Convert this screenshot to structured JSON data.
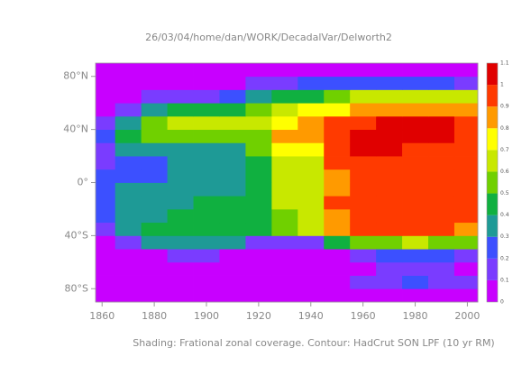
{
  "chart_data": {
    "type": "heatmap",
    "title": "26/03/04/home/dan/WORK/DecadalVar/Delworth2",
    "caption": "Shading: Frational zonal coverage. Contour: HadCrut SON LPF (10 yr RM)",
    "xlim": [
      1857.5,
      2004
    ],
    "ylim": [
      -90,
      90
    ],
    "xticks": [
      1860,
      1880,
      1900,
      1920,
      1940,
      1960,
      1980,
      2000
    ],
    "yticks": [
      {
        "value": -80,
        "label": "80°S"
      },
      {
        "value": -40,
        "label": "40°S"
      },
      {
        "value": 0,
        "label": "0°"
      },
      {
        "value": 40,
        "label": "40°N"
      },
      {
        "value": 80,
        "label": "80°N"
      }
    ],
    "x_bins": [
      1857.5,
      1865,
      1875,
      1885,
      1895,
      1905,
      1915,
      1925,
      1935,
      1945,
      1955,
      1965,
      1975,
      1985,
      1995,
      2004
    ],
    "y_bins": [
      -90,
      -80,
      -70,
      -60,
      -50,
      -40,
      -30,
      -20,
      -10,
      0,
      10,
      20,
      30,
      40,
      50,
      60,
      70,
      80,
      90
    ],
    "values": [
      [
        0,
        0,
        0,
        0,
        0,
        0,
        0,
        0,
        0,
        0,
        0,
        0,
        0,
        0,
        0
      ],
      [
        0,
        0,
        0,
        0,
        0,
        0,
        0,
        0,
        0,
        0,
        0.1,
        0.15,
        0.2,
        0.15,
        0.1
      ],
      [
        0,
        0,
        0,
        0,
        0,
        0,
        0,
        0,
        0,
        0,
        0.05,
        0.1,
        0.15,
        0.1,
        0.05
      ],
      [
        0,
        0,
        0.05,
        0.1,
        0.1,
        0.05,
        0,
        0,
        0,
        0,
        0.1,
        0.2,
        0.25,
        0.2,
        0.1
      ],
      [
        0,
        0.1,
        0.3,
        0.35,
        0.35,
        0.3,
        0.1,
        0.15,
        0.15,
        0.4,
        0.5,
        0.55,
        0.6,
        0.55,
        0.5
      ],
      [
        0.15,
        0.3,
        0.4,
        0.45,
        0.45,
        0.45,
        0.45,
        0.5,
        0.6,
        0.85,
        0.9,
        0.9,
        0.9,
        0.9,
        0.85
      ],
      [
        0.2,
        0.3,
        0.35,
        0.4,
        0.4,
        0.4,
        0.45,
        0.55,
        0.65,
        0.85,
        0.9,
        0.9,
        0.9,
        0.9,
        0.9
      ],
      [
        0.25,
        0.3,
        0.35,
        0.35,
        0.4,
        0.4,
        0.45,
        0.6,
        0.65,
        0.9,
        0.9,
        0.9,
        0.95,
        0.9,
        0.9
      ],
      [
        0.2,
        0.3,
        0.3,
        0.35,
        0.35,
        0.35,
        0.45,
        0.6,
        0.65,
        0.85,
        0.9,
        0.9,
        0.9,
        0.9,
        0.9
      ],
      [
        0.2,
        0.25,
        0.25,
        0.3,
        0.3,
        0.3,
        0.4,
        0.6,
        0.65,
        0.85,
        0.9,
        0.9,
        0.9,
        0.9,
        0.9
      ],
      [
        0.15,
        0.25,
        0.25,
        0.3,
        0.3,
        0.3,
        0.4,
        0.6,
        0.65,
        0.9,
        0.95,
        0.95,
        0.9,
        0.9,
        0.9
      ],
      [
        0.15,
        0.3,
        0.35,
        0.35,
        0.35,
        0.3,
        0.5,
        0.7,
        0.75,
        0.95,
        1.0,
        1.0,
        0.95,
        0.9,
        0.9
      ],
      [
        0.2,
        0.4,
        0.5,
        0.5,
        0.5,
        0.5,
        0.55,
        0.8,
        0.85,
        0.9,
        1.0,
        1.0,
        1.05,
        1.0,
        0.9
      ],
      [
        0.15,
        0.35,
        0.55,
        0.6,
        0.6,
        0.6,
        0.6,
        0.75,
        0.85,
        0.9,
        0.95,
        1.0,
        1.05,
        1.0,
        0.9
      ],
      [
        0.05,
        0.15,
        0.35,
        0.4,
        0.4,
        0.45,
        0.5,
        0.65,
        0.7,
        0.75,
        0.85,
        0.85,
        0.85,
        0.85,
        0.8
      ],
      [
        0,
        0,
        0.1,
        0.15,
        0.15,
        0.2,
        0.3,
        0.4,
        0.45,
        0.55,
        0.65,
        0.65,
        0.65,
        0.6,
        0.6
      ],
      [
        0,
        0,
        0,
        0,
        0,
        0.05,
        0.1,
        0.15,
        0.2,
        0.2,
        0.2,
        0.25,
        0.25,
        0.2,
        0.15
      ],
      [
        0,
        0,
        0,
        0,
        0,
        0,
        0,
        0,
        0,
        0,
        0,
        0,
        0,
        0,
        0
      ]
    ],
    "levels": [
      0,
      0.1,
      0.2,
      0.3,
      0.4,
      0.5,
      0.6,
      0.7,
      0.8,
      0.9,
      1,
      1.1
    ],
    "colors": [
      "#c800ff",
      "#7a3cff",
      "#3c50ff",
      "#1e9a96",
      "#10b040",
      "#70d000",
      "#c8e800",
      "#ffff00",
      "#ff9a00",
      "#ff3a00",
      "#e00000",
      "#a00000"
    ]
  }
}
